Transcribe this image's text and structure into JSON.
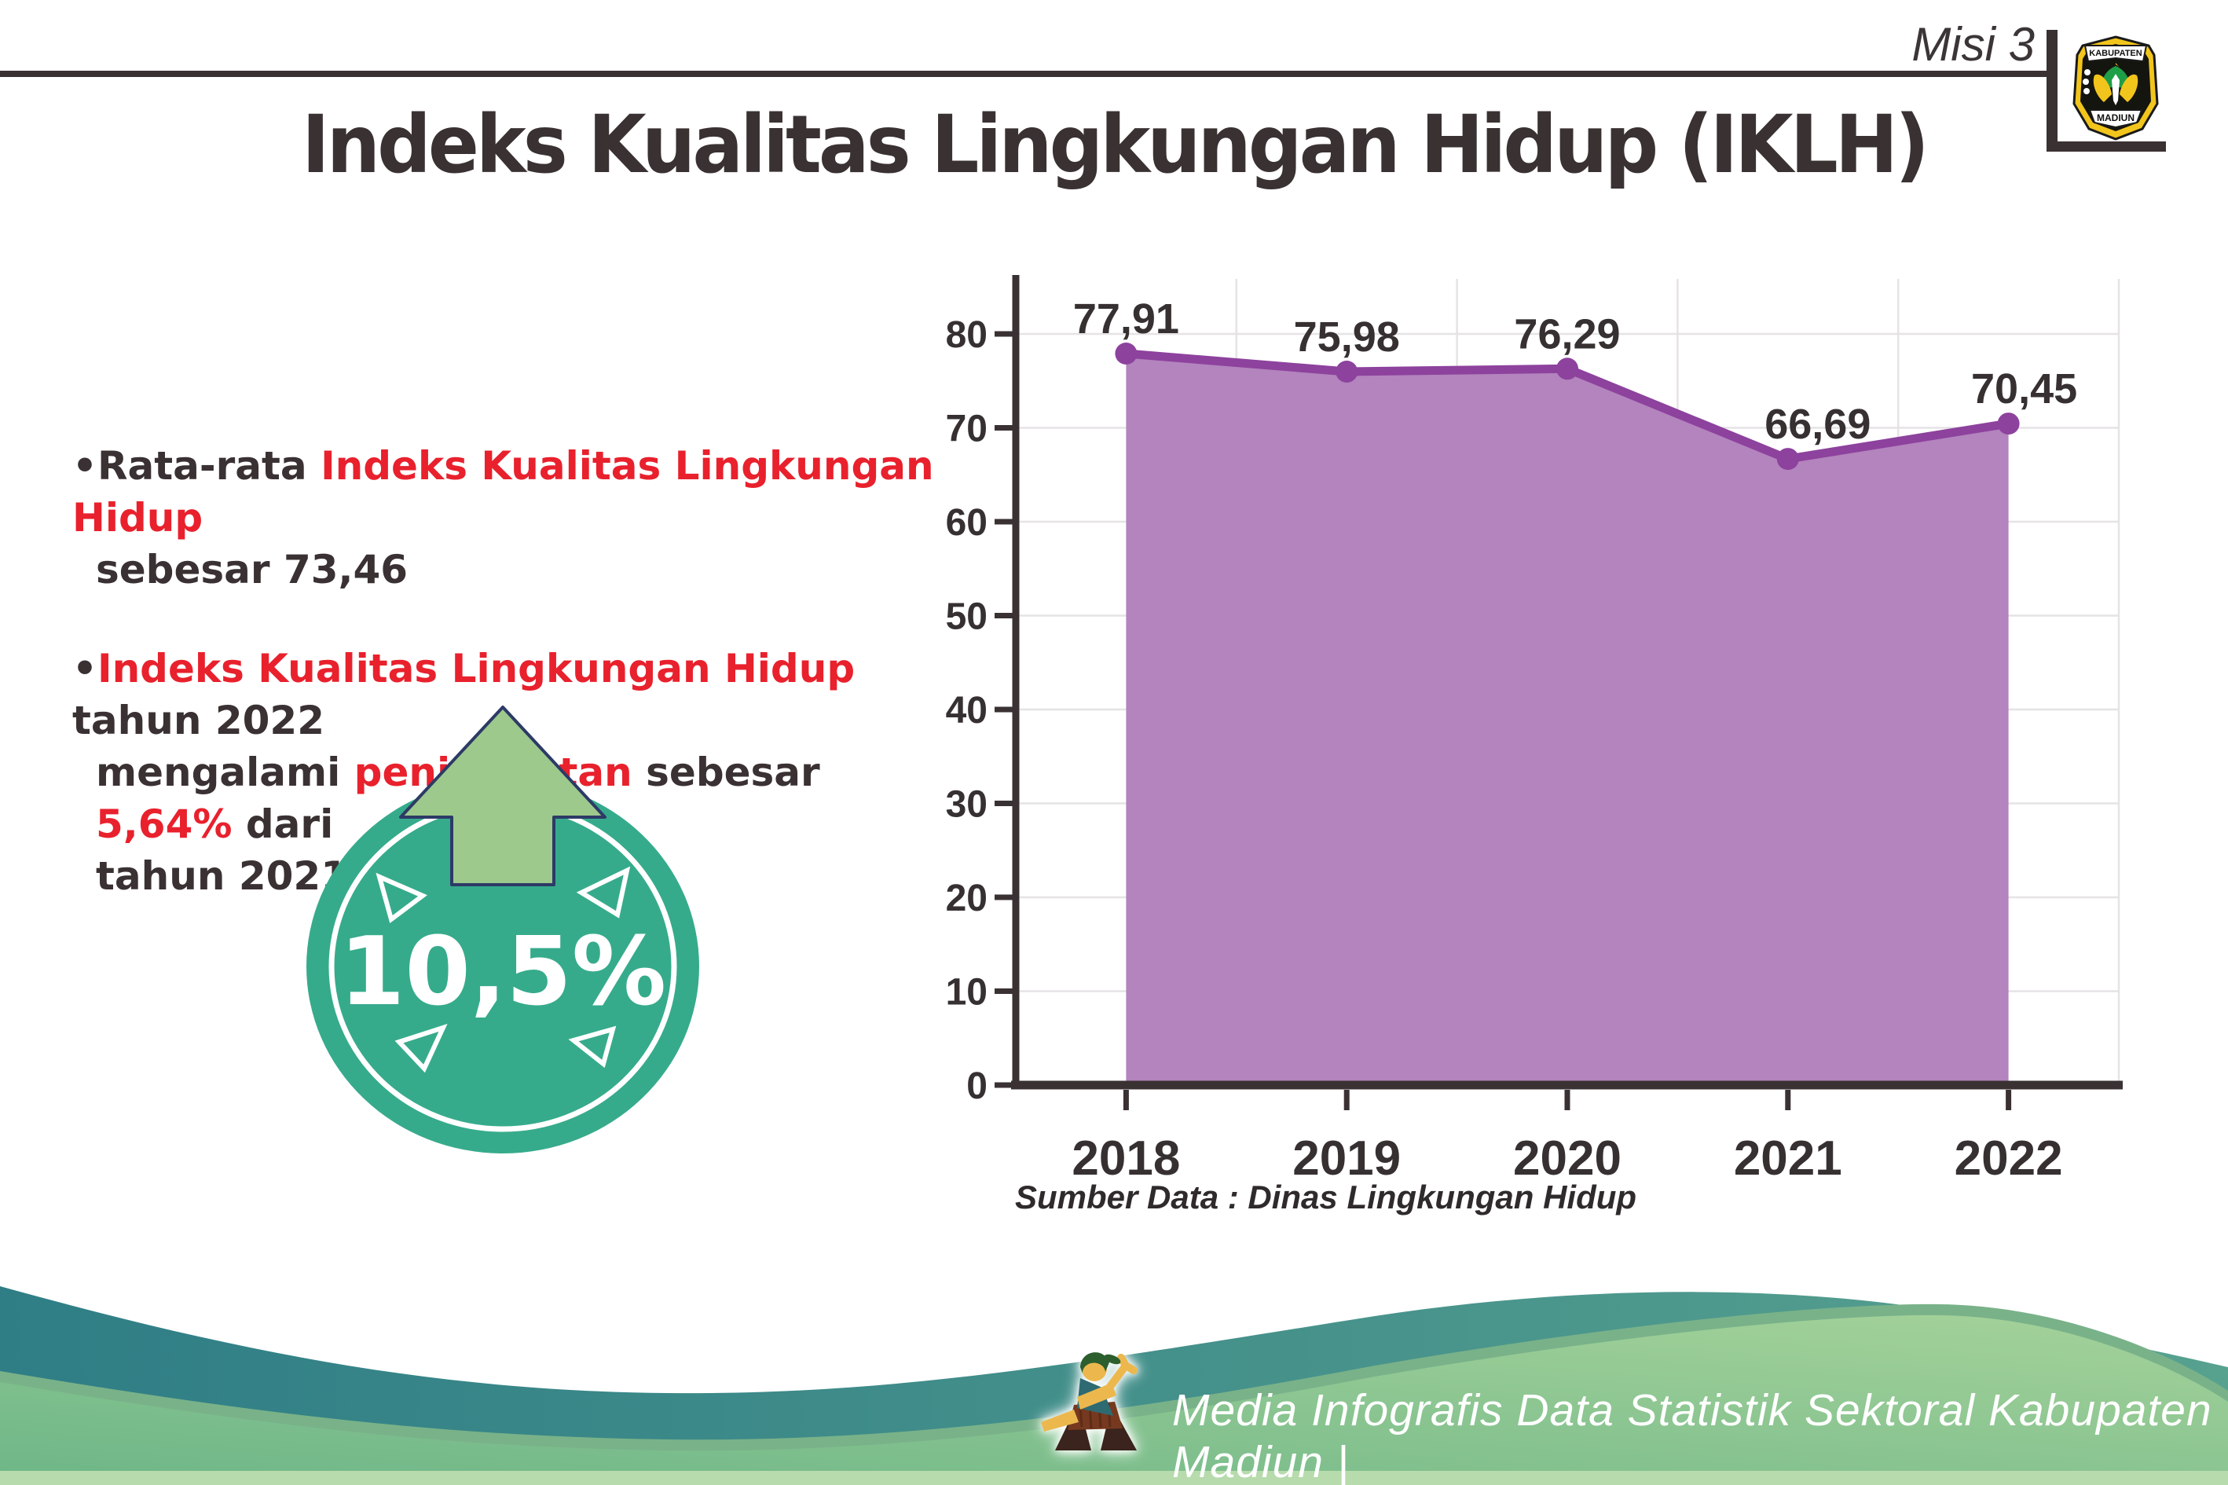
{
  "header": {
    "misi_label": "Misi 3",
    "logo": {
      "top_text": "KABUPATEN",
      "bottom_text": "MADIUN"
    }
  },
  "title": "Indeks Kualitas Lingkungan Hidup (IKLH)",
  "bullet_glyph": "•",
  "bullets": [
    {
      "lines": [
        [
          {
            "t": "Rata-rata ",
            "c": "dark"
          },
          {
            "t": "Indeks Kualitas Lingkungan Hidup",
            "c": "red"
          }
        ],
        [
          {
            "t": "sebesar 73,46",
            "c": "dark"
          }
        ]
      ]
    },
    {
      "lines": [
        [
          {
            "t": "Indeks Kualitas Lingkungan Hidup",
            "c": "red"
          },
          {
            "t": " tahun 2022",
            "c": "dark"
          }
        ],
        [
          {
            "t": "mengalami ",
            "c": "dark"
          },
          {
            "t": "peningkatan",
            "c": "red"
          },
          {
            "t": " sebesar ",
            "c": "dark"
          },
          {
            "t": "5,64%",
            "c": "red"
          },
          {
            "t": " dari",
            "c": "dark"
          }
        ],
        [
          {
            "t": "tahun 2021",
            "c": "dark"
          }
        ]
      ]
    }
  ],
  "badge": {
    "value": "10,5%",
    "direction": "up"
  },
  "chart_data": {
    "type": "area",
    "categories": [
      "2018",
      "2019",
      "2020",
      "2021",
      "2022"
    ],
    "values": [
      77.91,
      75.98,
      76.29,
      66.69,
      70.45
    ],
    "point_labels": [
      "77,91",
      "75,98",
      "76,29",
      "66,69",
      "70,45"
    ],
    "title": "",
    "xlabel": "",
    "ylabel": "",
    "ylim": [
      0,
      80
    ],
    "yticks": [
      0,
      10,
      20,
      30,
      40,
      50,
      60,
      70,
      80
    ],
    "grid": true,
    "legend": "none",
    "source_note": "Sumber Data : Dinas Lingkungan Hidup",
    "colors": {
      "area_fill": "#b384bd",
      "line": "#8d429d",
      "marker": "#8d429d",
      "axis": "#3a3132",
      "grid": "#e6e3e5"
    }
  },
  "footer": {
    "text": "Media Infografis Data Statistik Sektoral Kabupaten Madiun |"
  },
  "colors": {
    "text_dark": "#3a3132",
    "text_red": "#e8212d",
    "badge_teal": "#36ab8c",
    "badge_arrow_green": "#9dc98c",
    "badge_arrow_outline": "#2d3a66",
    "footer_teal": "#2f7e86",
    "footer_green": "#6db687",
    "footer_green_light": "#a5d29a"
  }
}
